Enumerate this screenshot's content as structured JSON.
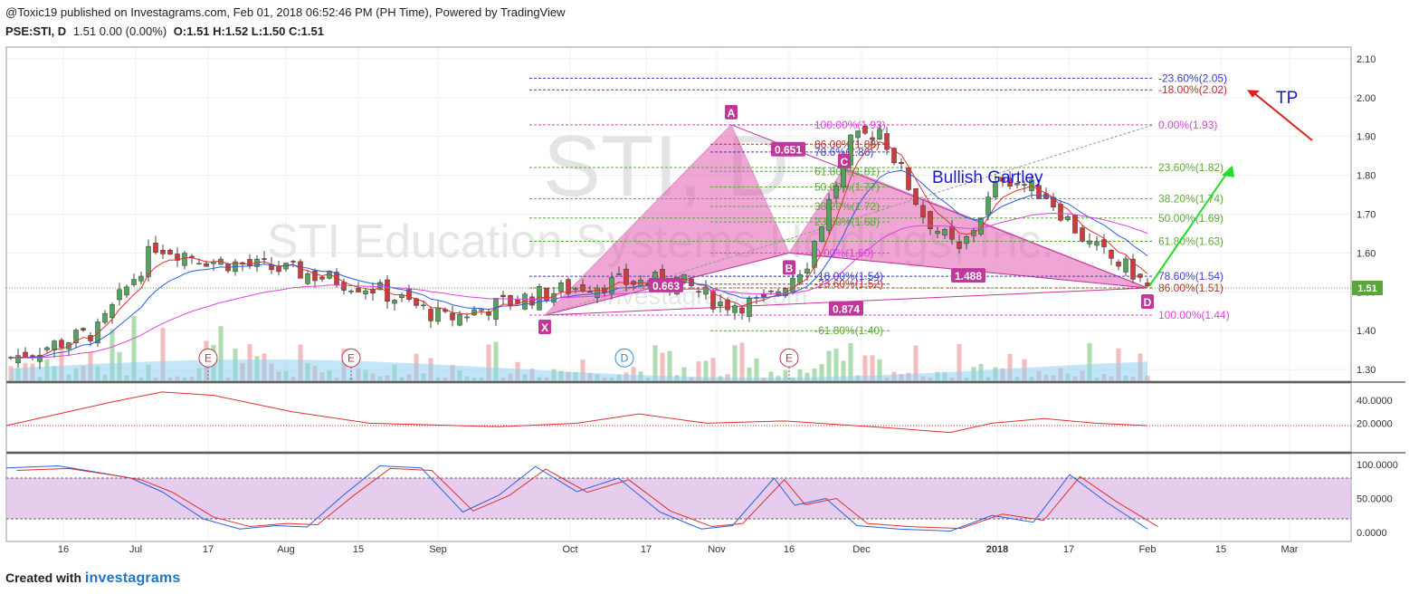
{
  "header": {
    "publisher": "@Toxic19 published on Investagrams.com, Feb 01, 2018 06:52:46 PM (PH Time), Powered by TradingView",
    "symbol": "PSE:STI, D",
    "quote_change": "1.51 0.00 (0.00%)",
    "ohlc": "O:1.51 H:1.52 L:1.50 C:1.51"
  },
  "watermark": {
    "ticker": "STI, D",
    "company": "STI Education Systems Holdings, Inc.",
    "site": "investagrams.com"
  },
  "footer": {
    "created_with": "Created with",
    "brand": "investagrams"
  },
  "colors": {
    "harmonic_fill": "#e35fb4",
    "harmonic_label": "#c2379a",
    "fib_green": "#5fa83a",
    "fib_magenta": "#e040e0",
    "fib_blue": "#3c3ccc",
    "fib_red": "#b03030",
    "arrow_green": "#22dd22",
    "arrow_red": "#e02020",
    "price_badge": "#5aa63c",
    "ema_red": "#e03030",
    "ema_blue": "#2a5fe0",
    "ma_magenta": "#e040e0"
  },
  "annotations": {
    "pattern_name": "Bullish Gartley",
    "target_label": "TP",
    "points": [
      "X",
      "A",
      "B",
      "C",
      "D"
    ],
    "ratios": [
      "0.651",
      "0.663",
      "1.488",
      "0.874"
    ],
    "events": [
      "E",
      "E",
      "E"
    ],
    "dividend": "D"
  },
  "fib_labels": {
    "right": [
      "-23.60%(2.05)",
      "-18.00%(2.02)",
      "0.00%(1.93)",
      "23.60%(1.82)",
      "38.20%(1.74)",
      "50.00%(1.69)",
      "61.80%(1.63)",
      "78.60%(1.54)",
      "86.00%(1.51)",
      "100.00%(1.44)"
    ],
    "mid": [
      "100.00%(1.93)",
      "86.00%(1.88)",
      "78.6%(1.86)",
      "61.80%(1.81)",
      "50.00%(1.77)",
      "38.20%(1.72)",
      "23.60%(1.68)",
      "0.00%(1.60)",
      "-18.00%(1.54)",
      "-23.60%(1.52)",
      "-61.80%(1.40)"
    ]
  },
  "chart_data": [
    {
      "type": "candlestick",
      "panel": "price",
      "x_axis_labels": [
        "16",
        "Jul",
        "17",
        "Aug",
        "15",
        "Sep",
        "Oct",
        "17",
        "Nov",
        "16",
        "Dec",
        "2018",
        "17",
        "Feb",
        "15",
        "Mar"
      ],
      "y_ticks": [
        "2.10",
        "2.00",
        "1.90",
        "1.80",
        "1.70",
        "1.60",
        "1.50",
        "1.40",
        "1.30"
      ],
      "ylim": [
        1.27,
        2.13
      ],
      "last_price": "1.51",
      "harmonic_points": [
        {
          "label": "X",
          "price": 1.44
        },
        {
          "label": "A",
          "price": 1.93
        },
        {
          "label": "B",
          "price": 1.6
        },
        {
          "label": "C",
          "price": 1.82
        },
        {
          "label": "D",
          "price": 1.51
        }
      ],
      "fib_levels_right": [
        2.05,
        2.02,
        1.93,
        1.82,
        1.74,
        1.69,
        1.63,
        1.54,
        1.51,
        1.44
      ],
      "fib_levels_mid": [
        1.93,
        1.88,
        1.86,
        1.81,
        1.77,
        1.72,
        1.68,
        1.6,
        1.54,
        1.52,
        1.4
      ]
    },
    {
      "type": "line",
      "panel": "indicator",
      "y_ticks": [
        "40.0000",
        "20.0000"
      ],
      "reference_level": 18
    },
    {
      "type": "line",
      "panel": "stochastic",
      "y_ticks": [
        "100.0000",
        "50.0000",
        "0.0000"
      ],
      "band": [
        20,
        80
      ]
    }
  ]
}
